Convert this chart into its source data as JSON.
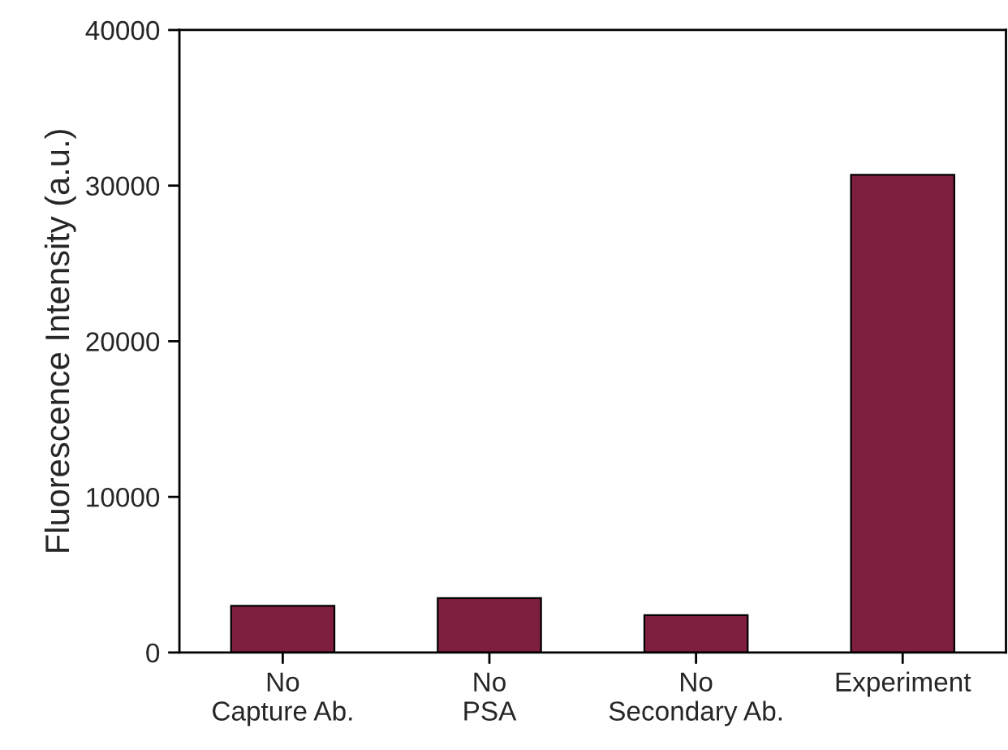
{
  "chart_data": {
    "type": "bar",
    "ylabel": "Fluorescence Intensity (a.u.)",
    "categories": [
      "No\nCapture Ab.",
      "No\nPSA",
      "No\nSecondary Ab.",
      "Experiment"
    ],
    "values": [
      3000,
      3500,
      2400,
      30700
    ],
    "color": "#7f1f3f",
    "ylim": [
      0,
      40000
    ],
    "yticks": [
      0,
      10000,
      20000,
      30000,
      40000
    ],
    "grid": false
  }
}
